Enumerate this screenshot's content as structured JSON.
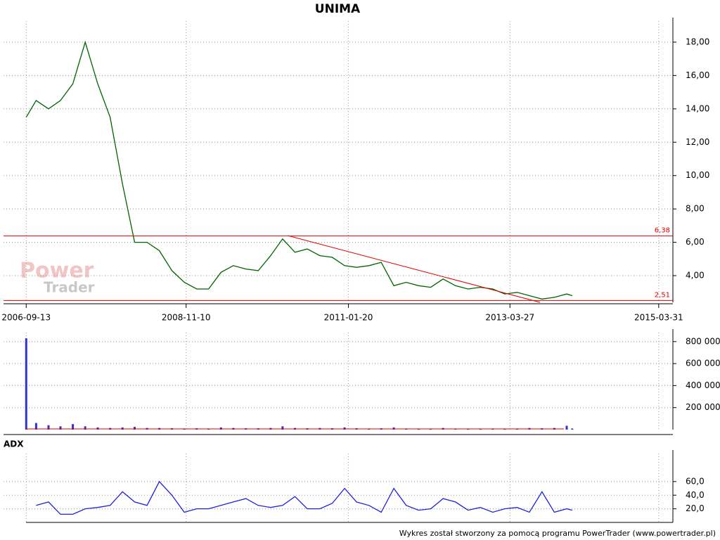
{
  "chart_data": [
    {
      "type": "line",
      "title": "UNIMA",
      "color": "#006400",
      "x": [
        "2006-09-13",
        "2006-11-01",
        "2007-01-01",
        "2007-03-01",
        "2007-05-01",
        "2007-07-01",
        "2007-09-01",
        "2007-11-01",
        "2008-01-01",
        "2008-03-01",
        "2008-05-01",
        "2008-07-01",
        "2008-09-01",
        "2008-11-01",
        "2009-01-01",
        "2009-03-01",
        "2009-05-01",
        "2009-07-01",
        "2009-09-01",
        "2009-11-01",
        "2010-01-01",
        "2010-03-01",
        "2010-05-01",
        "2010-07-01",
        "2010-09-01",
        "2010-11-01",
        "2011-01-01",
        "2011-03-01",
        "2011-05-01",
        "2011-07-01",
        "2011-09-01",
        "2011-11-01",
        "2012-01-01",
        "2012-03-01",
        "2012-05-01",
        "2012-07-01",
        "2012-09-01",
        "2012-11-01",
        "2013-01-01",
        "2013-03-01",
        "2013-05-01",
        "2013-07-01",
        "2013-09-01",
        "2013-11-01",
        "2014-01-01",
        "2014-01-28"
      ],
      "values": [
        13.5,
        14.5,
        14.0,
        14.5,
        15.5,
        18.0,
        15.5,
        13.5,
        9.5,
        6.0,
        6.0,
        5.5,
        4.3,
        3.6,
        3.2,
        3.2,
        4.2,
        4.6,
        4.4,
        4.3,
        5.2,
        6.2,
        5.4,
        5.6,
        5.2,
        5.1,
        4.6,
        4.5,
        4.6,
        4.8,
        3.4,
        3.6,
        3.4,
        3.3,
        3.8,
        3.4,
        3.2,
        3.3,
        3.2,
        2.9,
        3.0,
        2.8,
        2.6,
        2.7,
        2.9,
        2.8
      ],
      "xlim": [
        "2006-05-24",
        "2015-06-09"
      ],
      "xticks": [
        "2006-09-13",
        "2008-11-10",
        "2011-01-20",
        "2013-03-27",
        "2015-03-31"
      ],
      "ylim": [
        2.4,
        19.05
      ],
      "yticks": [
        {
          "value": 4,
          "label": "4,00"
        },
        {
          "value": 6,
          "label": "6,00"
        },
        {
          "value": 8,
          "label": "8,00"
        },
        {
          "value": 10,
          "label": "10,00"
        },
        {
          "value": 12,
          "label": "12,00"
        },
        {
          "value": 14,
          "label": "14,00"
        },
        {
          "value": 16,
          "label": "16,00"
        },
        {
          "value": 18,
          "label": "18,00"
        }
      ],
      "grid": true,
      "hlines": [
        {
          "value": 6.38,
          "label": "6,38"
        },
        {
          "value": 2.51,
          "label": "2,51"
        }
      ],
      "trendline": {
        "x": [
          "2010-03-27",
          "2013-08-22"
        ],
        "values": [
          6.4,
          2.4
        ]
      },
      "watermark": [
        "Power",
        "Trader"
      ]
    },
    {
      "type": "bar",
      "color": "#3333cc",
      "x": [
        "2006-09-13",
        "2006-11-01",
        "2007-01-01",
        "2007-03-01",
        "2007-05-01",
        "2007-07-01",
        "2007-09-01",
        "2007-11-01",
        "2008-01-01",
        "2008-03-01",
        "2008-05-01",
        "2008-07-01",
        "2008-09-01",
        "2008-11-01",
        "2009-01-01",
        "2009-03-01",
        "2009-05-01",
        "2009-07-01",
        "2009-09-01",
        "2009-11-01",
        "2010-01-01",
        "2010-03-01",
        "2010-05-01",
        "2010-07-01",
        "2010-09-01",
        "2010-11-01",
        "2011-01-01",
        "2011-03-01",
        "2011-05-01",
        "2011-07-01",
        "2011-09-01",
        "2011-11-01",
        "2012-01-01",
        "2012-03-01",
        "2012-05-01",
        "2012-07-01",
        "2012-09-01",
        "2012-11-01",
        "2013-01-01",
        "2013-03-01",
        "2013-05-01",
        "2013-07-01",
        "2013-09-01",
        "2013-11-01",
        "2014-01-01",
        "2014-01-28"
      ],
      "values": [
        830000,
        60000,
        40000,
        30000,
        50000,
        30000,
        20000,
        15000,
        20000,
        25000,
        15000,
        15000,
        12000,
        10000,
        12000,
        10000,
        20000,
        15000,
        12000,
        12000,
        15000,
        30000,
        15000,
        12000,
        15000,
        12000,
        20000,
        12000,
        10000,
        12000,
        20000,
        10000,
        8000,
        8000,
        15000,
        8000,
        8000,
        8000,
        10000,
        8000,
        10000,
        15000,
        12000,
        15000,
        35000,
        10000
      ],
      "ylim": [
        0,
        850000
      ],
      "yticks": [
        {
          "value": 200000,
          "label": "200 000"
        },
        {
          "value": 400000,
          "label": "400 000"
        },
        {
          "value": 600000,
          "label": "600 000"
        },
        {
          "value": 800000,
          "label": "800 000"
        }
      ]
    },
    {
      "type": "line",
      "title": "ADX",
      "color": "#2020dd",
      "x": [
        "2006-09-13",
        "2006-11-01",
        "2007-01-01",
        "2007-03-01",
        "2007-05-01",
        "2007-07-01",
        "2007-09-01",
        "2007-11-01",
        "2008-01-01",
        "2008-03-01",
        "2008-05-01",
        "2008-07-01",
        "2008-09-01",
        "2008-11-01",
        "2009-01-01",
        "2009-03-01",
        "2009-05-01",
        "2009-07-01",
        "2009-09-01",
        "2009-11-01",
        "2010-01-01",
        "2010-03-01",
        "2010-05-01",
        "2010-07-01",
        "2010-09-01",
        "2010-11-01",
        "2011-01-01",
        "2011-03-01",
        "2011-05-01",
        "2011-07-01",
        "2011-09-01",
        "2011-11-01",
        "2012-01-01",
        "2012-03-01",
        "2012-05-01",
        "2012-07-01",
        "2012-09-01",
        "2012-11-01",
        "2013-01-01",
        "2013-03-01",
        "2013-05-01",
        "2013-07-01",
        "2013-09-01",
        "2013-11-01",
        "2014-01-01",
        "2014-01-28"
      ],
      "values": [
        null,
        25,
        30,
        12,
        12,
        20,
        22,
        25,
        45,
        30,
        25,
        60,
        40,
        15,
        20,
        20,
        25,
        30,
        35,
        25,
        22,
        25,
        38,
        20,
        20,
        28,
        50,
        30,
        25,
        15,
        50,
        25,
        18,
        20,
        35,
        30,
        18,
        22,
        15,
        20,
        22,
        15,
        45,
        15,
        20,
        18
      ],
      "ylim": [
        0,
        96
      ],
      "yticks": [
        {
          "value": 20,
          "label": "20,0"
        },
        {
          "value": 40,
          "label": "40,0"
        },
        {
          "value": 60,
          "label": "60,0"
        }
      ]
    }
  ],
  "footer": "Wykres został stworzony za pomocą programu PowerTrader (www.powertrader.pl)"
}
